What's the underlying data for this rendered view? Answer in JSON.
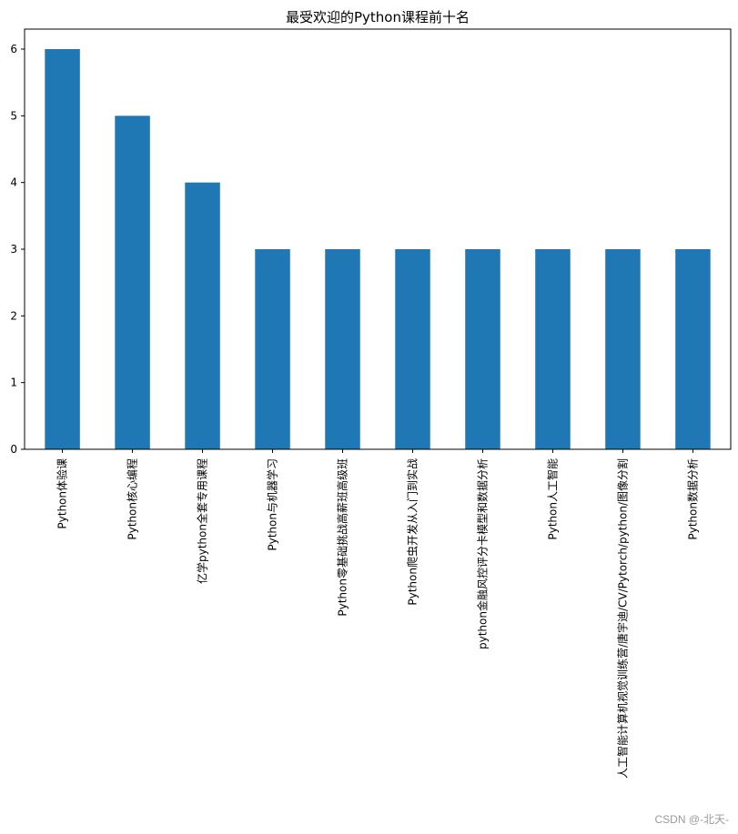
{
  "chart_data": {
    "type": "bar",
    "title": "最受欢迎的Python课程前十名",
    "xlabel": "",
    "ylabel": "",
    "ylim": [
      0,
      6.3
    ],
    "yticks": [
      0,
      1,
      2,
      3,
      4,
      5,
      6
    ],
    "grid": false,
    "bar_color": "#1f77b4",
    "categories": [
      "Python体验课",
      "Python核心编程",
      "亿学python全套专用课程",
      "Python与机器学习",
      "Python零基础挑战高薪班高级班",
      "Python爬虫开发从入门到实战",
      "python金融风控评分卡模型和数据分析",
      "Python人工智能",
      "人工智能计算机视觉训练营/唐宇迪/CV/Pytorch/python/图像分割",
      "Python数据分析"
    ],
    "values": [
      6,
      5,
      4,
      3,
      3,
      3,
      3,
      3,
      3,
      3
    ]
  },
  "watermark": "CSDN @-北天-"
}
